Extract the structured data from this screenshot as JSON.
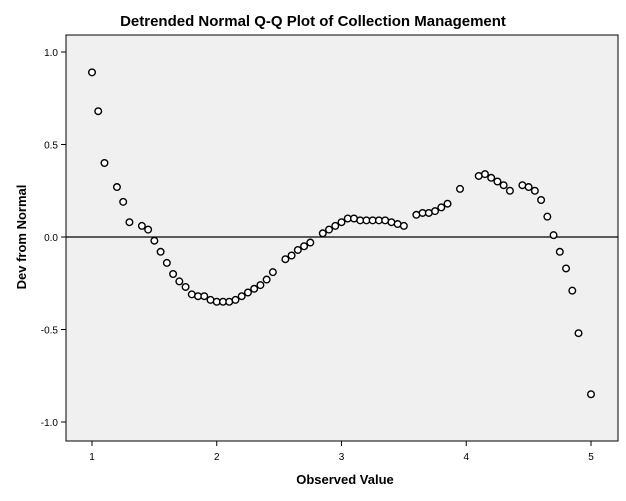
{
  "chart_data": {
    "type": "scatter",
    "title": "Detrended Normal Q-Q Plot of Collection Management",
    "xlabel": "Observed Value",
    "ylabel": "Dev from Normal",
    "xlim": [
      0.75,
      5.25
    ],
    "ylim": [
      -1.1,
      1.1
    ],
    "xticks": [
      1,
      2,
      3,
      4,
      5
    ],
    "yticks": [
      1.0,
      0.5,
      0.0,
      -0.5,
      -1.0
    ],
    "xtick_labels": [
      "1",
      "2",
      "3",
      "4",
      "5"
    ],
    "ytick_labels": [
      "1.0",
      "0.5",
      "0.0",
      "-0.5",
      "-1.0"
    ],
    "reference_line_y": 0.0,
    "grid": false,
    "colors": {
      "plot_background": "#f0f0f0",
      "marker_stroke": "#000000",
      "marker_fill": "#ffffff"
    },
    "points": [
      [
        1.0,
        0.89
      ],
      [
        1.05,
        0.68
      ],
      [
        1.1,
        0.4
      ],
      [
        1.2,
        0.27
      ],
      [
        1.25,
        0.19
      ],
      [
        1.3,
        0.08
      ],
      [
        1.4,
        0.06
      ],
      [
        1.45,
        0.04
      ],
      [
        1.5,
        -0.02
      ],
      [
        1.55,
        -0.08
      ],
      [
        1.6,
        -0.14
      ],
      [
        1.65,
        -0.2
      ],
      [
        1.7,
        -0.24
      ],
      [
        1.75,
        -0.27
      ],
      [
        1.8,
        -0.31
      ],
      [
        1.85,
        -0.32
      ],
      [
        1.9,
        -0.32
      ],
      [
        1.95,
        -0.34
      ],
      [
        2.0,
        -0.35
      ],
      [
        2.05,
        -0.35
      ],
      [
        2.1,
        -0.35
      ],
      [
        2.15,
        -0.34
      ],
      [
        2.2,
        -0.32
      ],
      [
        2.25,
        -0.3
      ],
      [
        2.3,
        -0.28
      ],
      [
        2.35,
        -0.26
      ],
      [
        2.4,
        -0.23
      ],
      [
        2.45,
        -0.19
      ],
      [
        2.55,
        -0.12
      ],
      [
        2.6,
        -0.1
      ],
      [
        2.65,
        -0.07
      ],
      [
        2.7,
        -0.05
      ],
      [
        2.75,
        -0.03
      ],
      [
        2.85,
        0.02
      ],
      [
        2.9,
        0.04
      ],
      [
        2.95,
        0.06
      ],
      [
        3.0,
        0.08
      ],
      [
        3.05,
        0.1
      ],
      [
        3.1,
        0.1
      ],
      [
        3.15,
        0.09
      ],
      [
        3.2,
        0.09
      ],
      [
        3.25,
        0.09
      ],
      [
        3.3,
        0.09
      ],
      [
        3.35,
        0.09
      ],
      [
        3.4,
        0.08
      ],
      [
        3.45,
        0.07
      ],
      [
        3.5,
        0.06
      ],
      [
        3.6,
        0.12
      ],
      [
        3.65,
        0.13
      ],
      [
        3.7,
        0.13
      ],
      [
        3.75,
        0.14
      ],
      [
        3.8,
        0.16
      ],
      [
        3.85,
        0.18
      ],
      [
        3.95,
        0.26
      ],
      [
        4.1,
        0.33
      ],
      [
        4.15,
        0.34
      ],
      [
        4.2,
        0.32
      ],
      [
        4.25,
        0.3
      ],
      [
        4.3,
        0.28
      ],
      [
        4.35,
        0.25
      ],
      [
        4.45,
        0.28
      ],
      [
        4.5,
        0.27
      ],
      [
        4.55,
        0.25
      ],
      [
        4.6,
        0.2
      ],
      [
        4.65,
        0.11
      ],
      [
        4.7,
        0.01
      ],
      [
        4.75,
        -0.08
      ],
      [
        4.8,
        -0.17
      ],
      [
        4.85,
        -0.29
      ],
      [
        4.9,
        -0.52
      ],
      [
        5.0,
        -0.85
      ]
    ]
  }
}
